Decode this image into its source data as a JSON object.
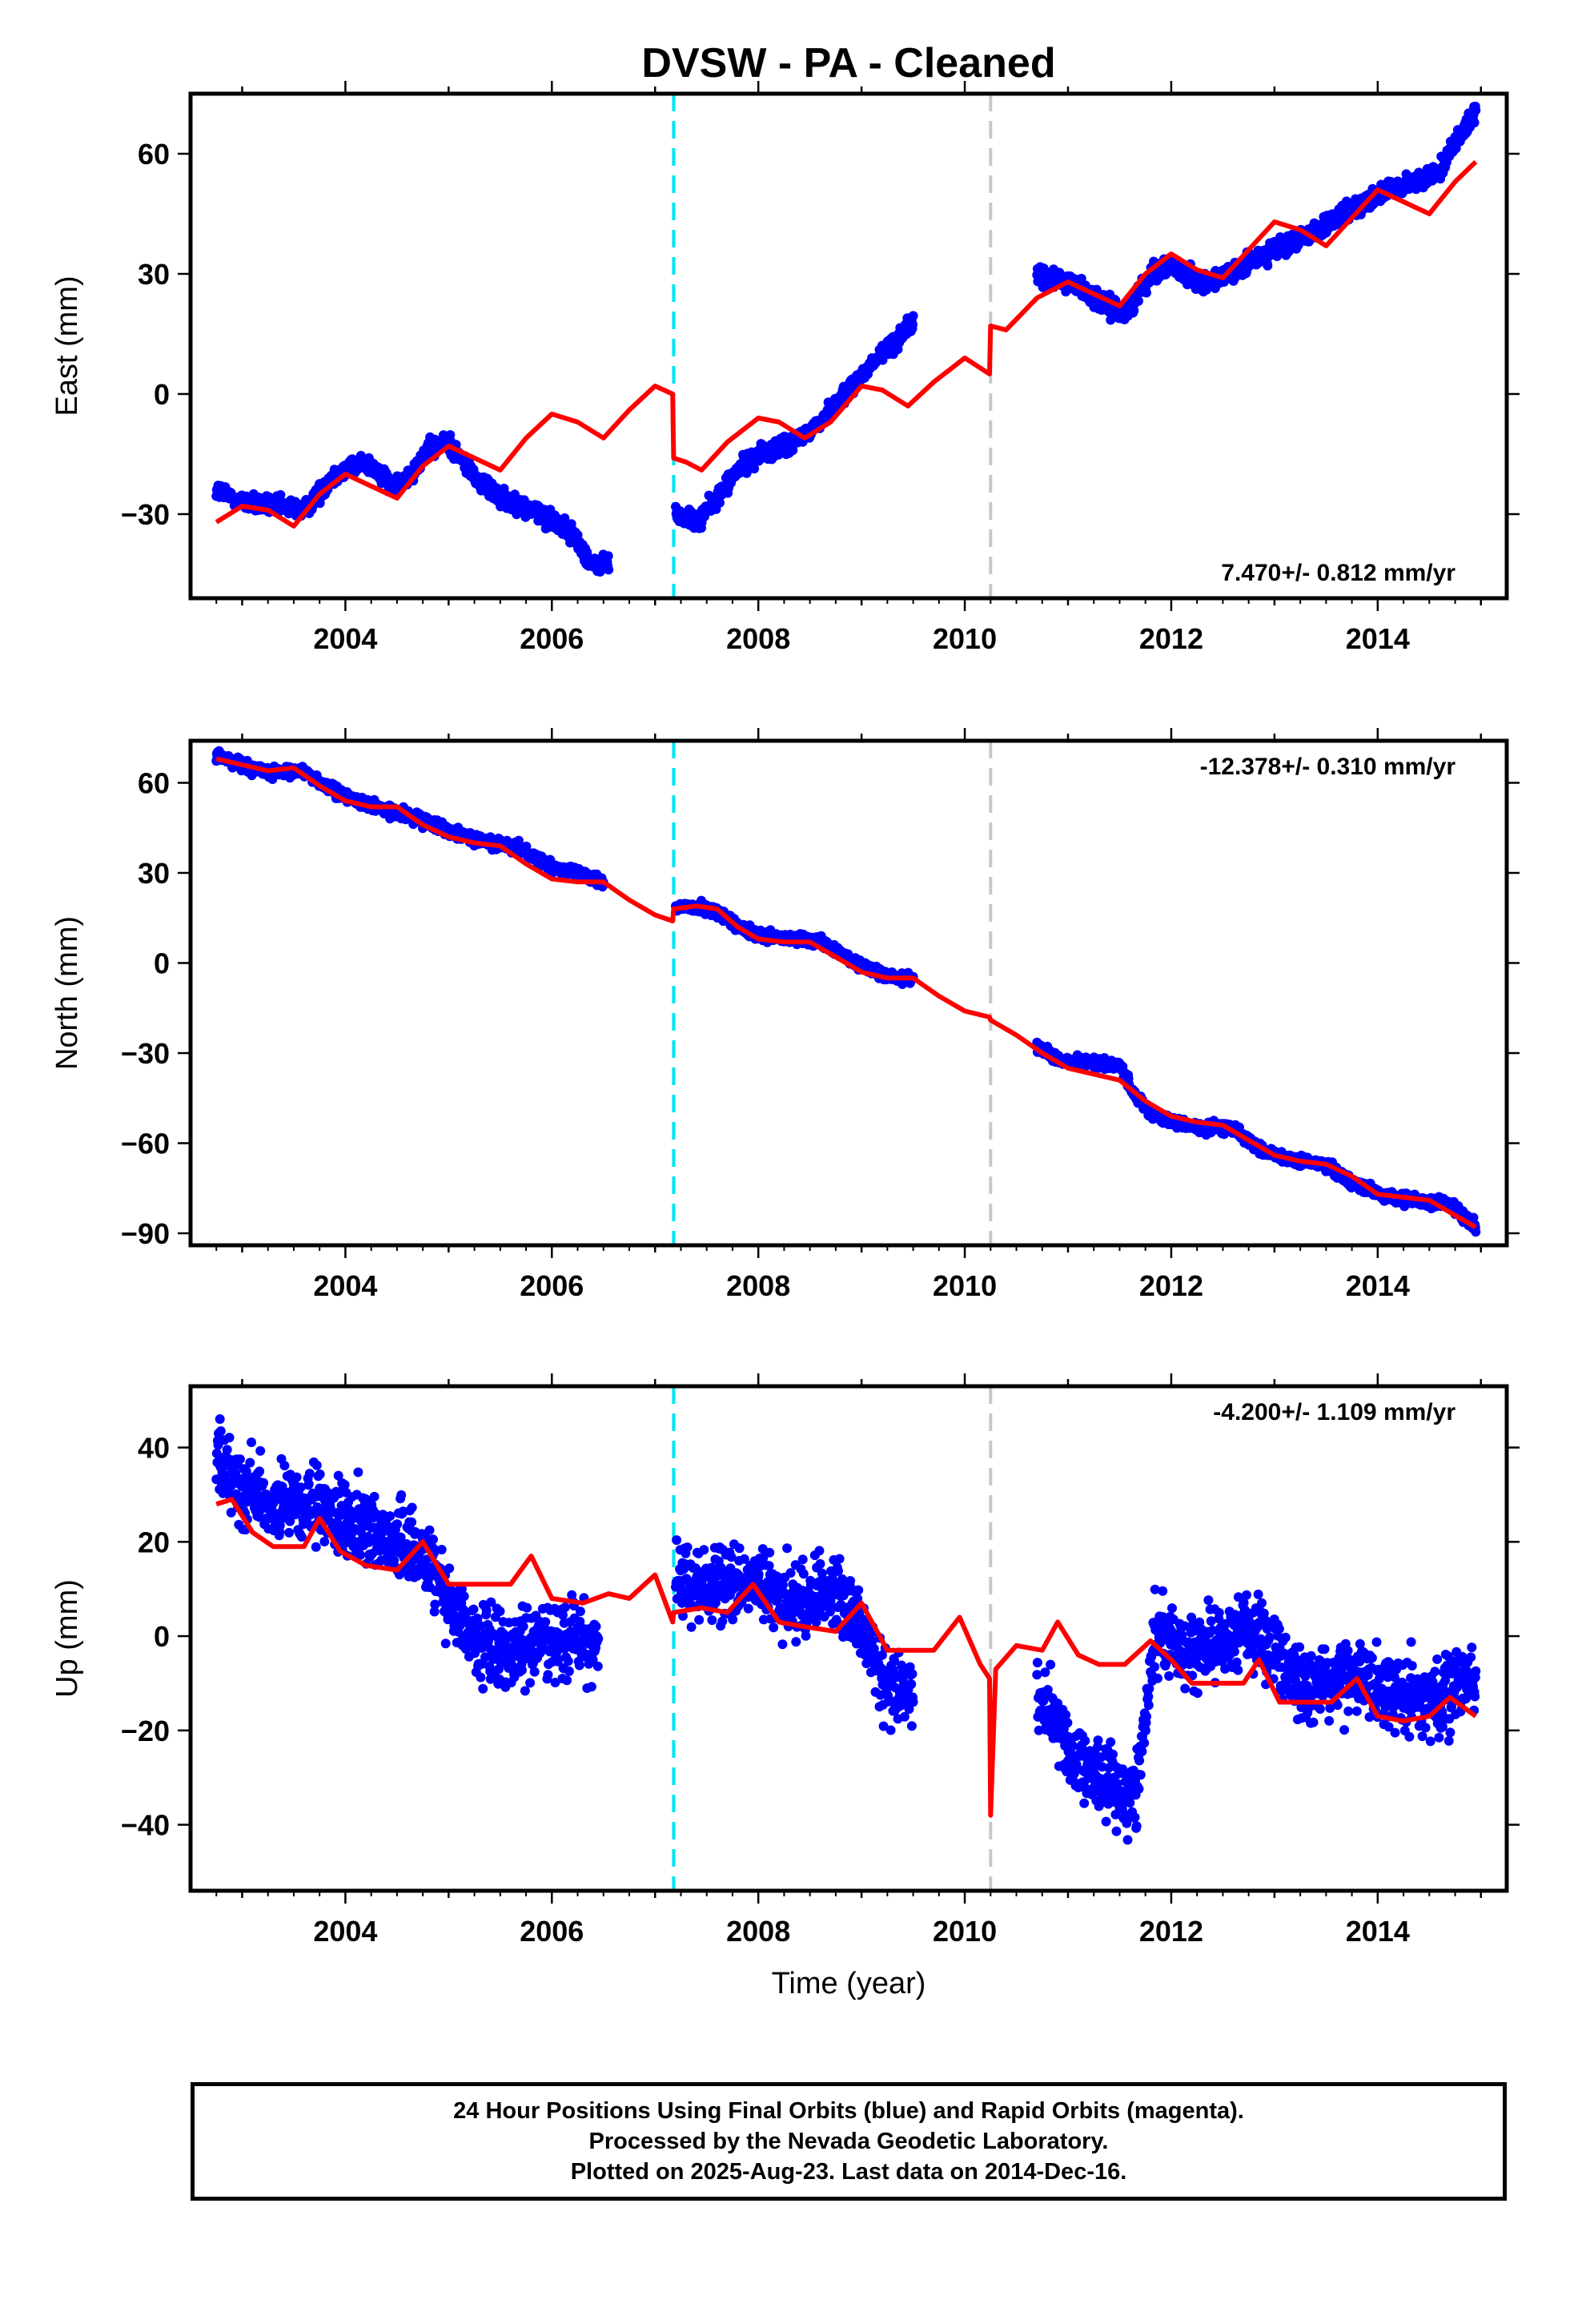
{
  "title": "DVSW  - PA - Cleaned",
  "xlabel": "Time (year)",
  "colors": {
    "data": "#0000ff",
    "model": "#ff0000",
    "offset1": "#00e5ee",
    "offset2": "#c8c8c8"
  },
  "offset_lines": [
    2007.18,
    2010.25
  ],
  "footer": {
    "line1": "24 Hour Positions Using Final Orbits (blue) and Rapid Orbits (magenta).",
    "line2": "Processed by the Nevada Geodetic Laboratory.",
    "line3": "Plotted on 2025-Aug-23. Last data on 2014-Dec-16."
  },
  "chart_data": [
    {
      "type": "scatter",
      "ylabel": "East (mm)",
      "rate_label": "7.470+/- 0.812 mm/yr",
      "xlim": [
        2002.5,
        2015.25
      ],
      "ylim": [
        -51,
        75
      ],
      "x_ticks": [
        2004,
        2006,
        2008,
        2010,
        2012,
        2014
      ],
      "y_ticks": [
        -30,
        0,
        30,
        60
      ],
      "y_tick_labels": [
        "−30",
        "0",
        "30",
        "60"
      ],
      "data_segments": [
        {
          "x": [
            2002.75,
            2003.0,
            2003.3,
            2003.6,
            2003.9,
            2004.2,
            2004.5,
            2004.8,
            2005.0,
            2005.3,
            2005.6,
            2005.9,
            2006.2,
            2006.4,
            2006.55
          ],
          "y": [
            -24,
            -27,
            -28,
            -29,
            -20,
            -17,
            -24,
            -14,
            -12,
            -22,
            -27,
            -30,
            -35,
            -43,
            -42
          ]
        },
        {
          "x": [
            2007.2,
            2007.4,
            2007.6,
            2007.8,
            2008.0,
            2008.3,
            2008.6,
            2008.9,
            2009.2,
            2009.5
          ],
          "y": [
            -30,
            -32,
            -26,
            -19,
            -15,
            -13,
            -7,
            2,
            10,
            18
          ]
        },
        {
          "x": [
            2010.7,
            2010.9,
            2011.1,
            2011.3,
            2011.55,
            2011.8,
            2012.0,
            2012.3,
            2012.6,
            2012.9,
            2013.2,
            2013.5,
            2013.8,
            2014.0,
            2014.3,
            2014.6,
            2014.8,
            2014.95
          ],
          "y": [
            29,
            29,
            27,
            23,
            20,
            30,
            32,
            28,
            30,
            35,
            38,
            42,
            47,
            50,
            52,
            56,
            65,
            70
          ]
        }
      ],
      "model": {
        "x": [
          2002.75,
          2003.0,
          2003.25,
          2003.5,
          2003.75,
          2004.0,
          2004.25,
          2004.5,
          2004.75,
          2005.0,
          2005.25,
          2005.5,
          2005.75,
          2006.0,
          2006.25,
          2006.5,
          2006.75,
          2007.0,
          2007.17,
          2007.18,
          2007.3,
          2007.45,
          2007.7,
          2008.0,
          2008.2,
          2008.45,
          2008.7,
          2009.0,
          2009.2,
          2009.45,
          2009.7,
          2010.0,
          2010.24,
          2010.25,
          2010.4,
          2010.7,
          2011.0,
          2011.25,
          2011.5,
          2011.75,
          2012.0,
          2012.25,
          2012.5,
          2012.75,
          2013.0,
          2013.25,
          2013.5,
          2013.75,
          2014.0,
          2014.25,
          2014.5,
          2014.75,
          2014.95
        ],
        "y": [
          -32,
          -28,
          -29,
          -33,
          -25,
          -20,
          -23,
          -26,
          -18,
          -13,
          -16,
          -19,
          -11,
          -5,
          -7,
          -11,
          -4,
          2,
          0,
          -16,
          -17,
          -19,
          -12,
          -6,
          -7,
          -11,
          -7,
          2,
          1,
          -3,
          3,
          9,
          5,
          17,
          16,
          24,
          28,
          25,
          22,
          30,
          35,
          31,
          29,
          36,
          43,
          41,
          37,
          44,
          51,
          48,
          45,
          53,
          58
        ]
      }
    },
    {
      "type": "scatter",
      "ylabel": "North (mm)",
      "rate_label": "-12.378+/- 0.310 mm/yr",
      "xlim": [
        2002.5,
        2015.25
      ],
      "ylim": [
        -94,
        74
      ],
      "x_ticks": [
        2004,
        2006,
        2008,
        2010,
        2012,
        2014
      ],
      "y_ticks": [
        -90,
        -60,
        -30,
        0,
        30,
        60
      ],
      "y_tick_labels": [
        "−90",
        "−60",
        "−30",
        "0",
        "30",
        "60"
      ],
      "data_segments": [
        {
          "x": [
            2002.75,
            2003.0,
            2003.3,
            2003.6,
            2003.9,
            2004.2,
            2004.5,
            2004.8,
            2005.1,
            2005.4,
            2005.7,
            2006.0,
            2006.3,
            2006.5
          ],
          "y": [
            69,
            66,
            63,
            64,
            57,
            53,
            50,
            47,
            43,
            40,
            38,
            32,
            30,
            27
          ]
        },
        {
          "x": [
            2007.2,
            2007.4,
            2007.6,
            2007.8,
            2008.0,
            2008.3,
            2008.6,
            2008.9,
            2009.2,
            2009.5
          ],
          "y": [
            18,
            19,
            17,
            12,
            9,
            8,
            7,
            1,
            -4,
            -5
          ]
        },
        {
          "x": [
            2010.7,
            2010.9,
            2011.2,
            2011.5,
            2011.65,
            2011.8,
            2012.0,
            2012.3,
            2012.6,
            2012.9,
            2013.2,
            2013.5,
            2013.8,
            2014.1,
            2014.4,
            2014.7,
            2014.95
          ],
          "y": [
            -28,
            -32,
            -33,
            -34,
            -44,
            -50,
            -53,
            -55,
            -55,
            -63,
            -66,
            -67,
            -74,
            -78,
            -79,
            -80,
            -88
          ]
        }
      ],
      "model": {
        "x": [
          2002.75,
          2003.0,
          2003.25,
          2003.5,
          2003.75,
          2004.0,
          2004.25,
          2004.5,
          2004.75,
          2005.0,
          2005.25,
          2005.5,
          2005.75,
          2006.0,
          2006.25,
          2006.5,
          2006.75,
          2007.0,
          2007.17,
          2007.18,
          2007.4,
          2007.6,
          2007.8,
          2008.0,
          2008.25,
          2008.5,
          2008.75,
          2009.0,
          2009.25,
          2009.5,
          2009.75,
          2010.0,
          2010.24,
          2010.25,
          2010.5,
          2010.75,
          2011.0,
          2011.25,
          2011.5,
          2011.75,
          2012.0,
          2012.25,
          2012.5,
          2012.75,
          2013.0,
          2013.25,
          2013.5,
          2013.75,
          2014.0,
          2014.25,
          2014.5,
          2014.75,
          2014.95
        ],
        "y": [
          68,
          66,
          64,
          65,
          59,
          54,
          52,
          52,
          46,
          42,
          40,
          39,
          33,
          28,
          27,
          27,
          21,
          16,
          14,
          18,
          19,
          18,
          12,
          8,
          7,
          7,
          2,
          -3,
          -5,
          -5,
          -11,
          -16,
          -18,
          -19,
          -24,
          -30,
          -35,
          -37,
          -39,
          -46,
          -51,
          -53,
          -54,
          -59,
          -64,
          -66,
          -67,
          -71,
          -77,
          -78,
          -79,
          -84,
          -88
        ]
      }
    },
    {
      "type": "scatter",
      "ylabel": "Up (mm)",
      "rate_label": "-4.200+/- 1.109 mm/yr",
      "xlabel": "Time (year)",
      "xlim": [
        2002.5,
        2015.25
      ],
      "ylim": [
        -54,
        53
      ],
      "x_ticks": [
        2004,
        2006,
        2008,
        2010,
        2012,
        2014
      ],
      "y_ticks": [
        -40,
        -20,
        0,
        20,
        40
      ],
      "y_tick_labels": [
        "−40",
        "−20",
        "0",
        "20",
        "40"
      ],
      "data_segments": [
        {
          "x": [
            2002.75,
            2003.0,
            2003.3,
            2003.6,
            2003.9,
            2004.2,
            2004.5,
            2004.8,
            2005.0,
            2005.3,
            2005.6,
            2005.9,
            2006.2,
            2006.45
          ],
          "y": [
            38,
            32,
            28,
            27,
            26,
            23,
            20,
            17,
            8,
            -2,
            -3,
            -1,
            0,
            -2
          ]
        },
        {
          "x": [
            2007.2,
            2007.5,
            2007.8,
            2008.1,
            2008.4,
            2008.7,
            2008.95,
            2009.2,
            2009.5
          ],
          "y": [
            12,
            10,
            12,
            9,
            7,
            10,
            5,
            -10,
            -12
          ]
        },
        {
          "x": [
            2010.7,
            2010.9,
            2011.1,
            2011.3,
            2011.5,
            2011.65,
            2011.85,
            2012.1,
            2012.4,
            2012.7,
            2012.9,
            2013.2,
            2013.5,
            2013.8,
            2014.1,
            2014.4,
            2014.7,
            2014.95
          ],
          "y": [
            -12,
            -20,
            -27,
            -30,
            -32,
            -35,
            2,
            -3,
            -2,
            2,
            0,
            -10,
            -10,
            -8,
            -12,
            -13,
            -12,
            -8
          ]
        }
      ],
      "model": {
        "x": [
          2002.75,
          2002.9,
          2003.1,
          2003.3,
          2003.6,
          2003.75,
          2003.95,
          2004.2,
          2004.5,
          2004.75,
          2005.0,
          2005.3,
          2005.6,
          2005.8,
          2006.0,
          2006.3,
          2006.55,
          2006.75,
          2007.0,
          2007.17,
          2007.18,
          2007.45,
          2007.7,
          2007.95,
          2008.2,
          2008.45,
          2008.75,
          2009.0,
          2009.25,
          2009.5,
          2009.7,
          2009.95,
          2010.15,
          2010.24,
          2010.25,
          2010.3,
          2010.5,
          2010.75,
          2010.9,
          2011.1,
          2011.3,
          2011.55,
          2011.8,
          2012.0,
          2012.2,
          2012.45,
          2012.7,
          2012.85,
          2013.05,
          2013.3,
          2013.55,
          2013.8,
          2014.0,
          2014.25,
          2014.5,
          2014.7,
          2014.95
        ],
        "y": [
          28,
          29,
          22,
          19,
          19,
          25,
          18,
          15,
          14,
          20,
          11,
          11,
          11,
          17,
          8,
          7,
          9,
          8,
          13,
          3,
          5,
          6,
          5,
          11,
          3,
          2,
          1,
          7,
          -3,
          -3,
          -3,
          4,
          -6,
          -9,
          -38,
          -7,
          -2,
          -3,
          3,
          -4,
          -6,
          -6,
          -1,
          -5,
          -10,
          -10,
          -10,
          -5,
          -14,
          -14,
          -14,
          -9,
          -17,
          -18,
          -17,
          -13,
          -17
        ]
      }
    }
  ]
}
